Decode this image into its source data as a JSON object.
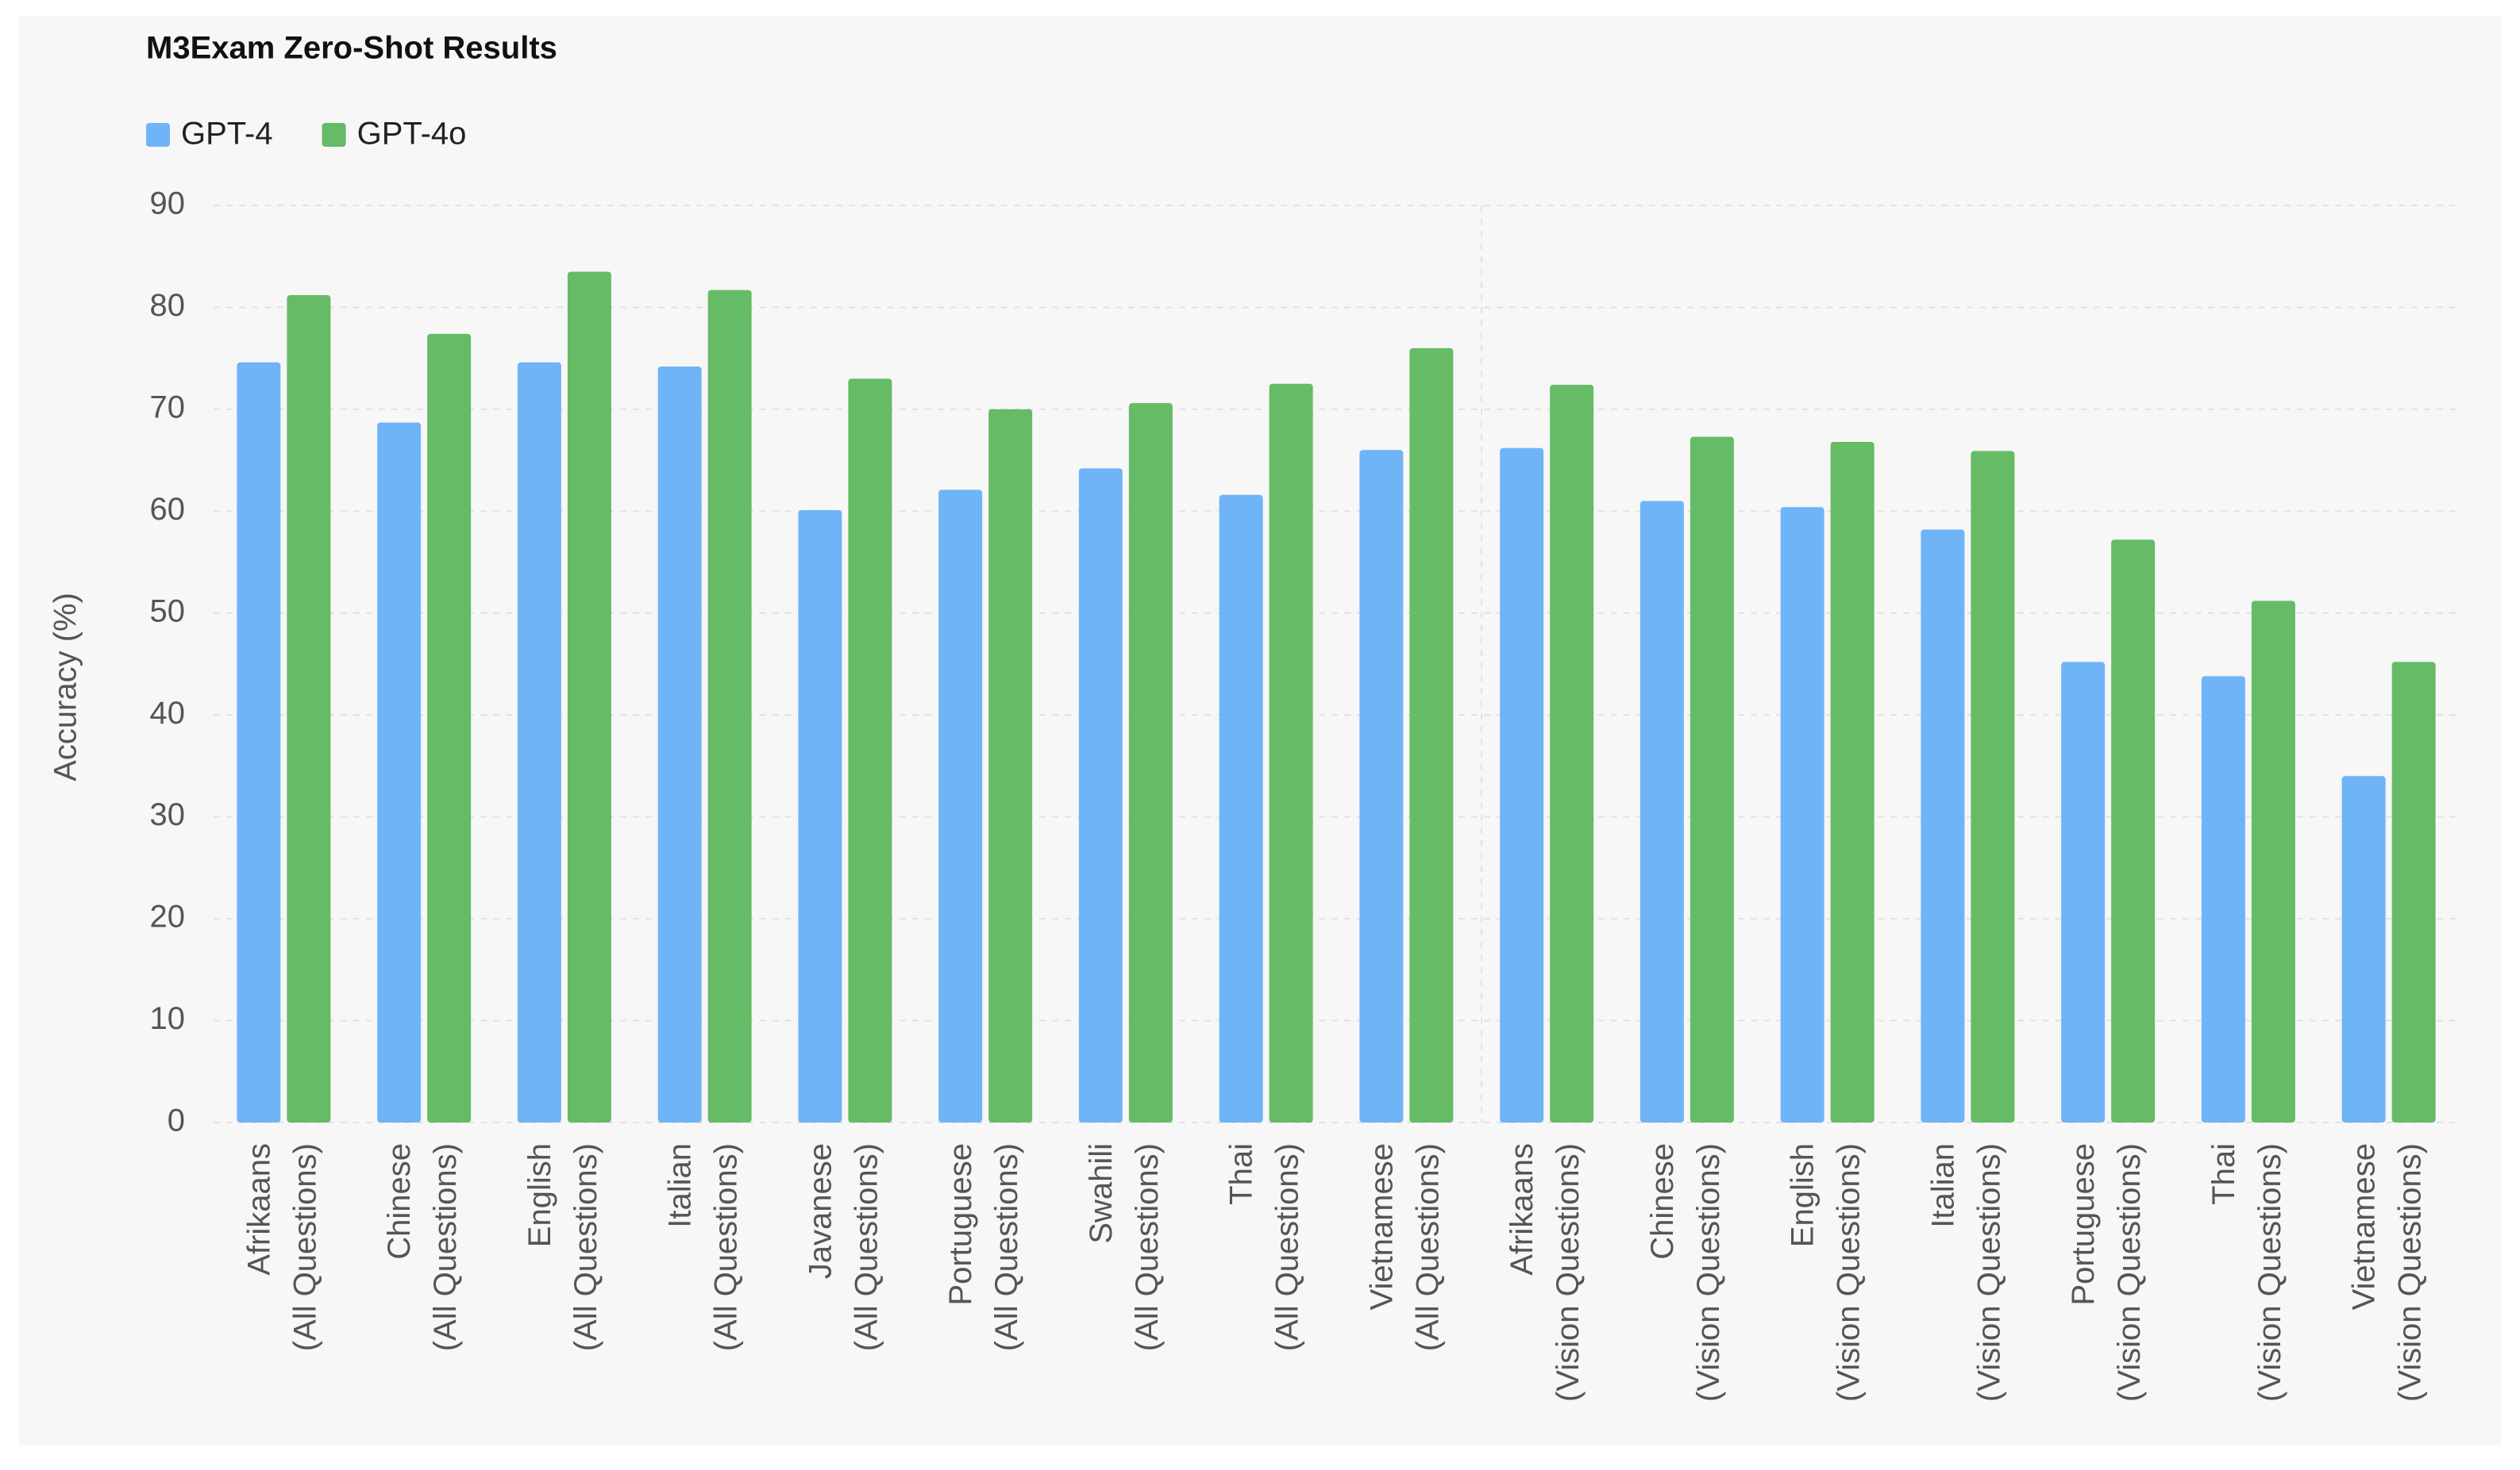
{
  "chart_data": {
    "type": "bar",
    "title": "M3Exam Zero-Shot Results",
    "y_label": "Accuracy (%)",
    "categories": [
      "Afrikaans\n(All Questions)",
      "Chinese\n(All Questions)",
      "English\n(All Questions)",
      "Italian\n(All Questions)",
      "Javanese\n(All Questions)",
      "Portuguese\n(All Questions)",
      "Swahili\n(All Questions)",
      "Thai\n(All Questions)",
      "Vietnamese\n(All Questions)",
      "Afrikaans\n(Vision Questions)",
      "Chinese\n(Vision Questions)",
      "English\n(Vision Questions)",
      "Italian\n(Vision Questions)",
      "Portuguese\n(Vision Questions)",
      "Thai\n(Vision Questions)",
      "Vietnamese\n(Vision Questions)"
    ],
    "series": [
      {
        "name": "GPT-4",
        "color": "#6fb4f7",
        "values": [
          74.6,
          68.7,
          74.6,
          74.2,
          60.1,
          62.1,
          64.2,
          61.6,
          66.0,
          66.2,
          61.0,
          60.4,
          58.2,
          45.2,
          43.8,
          34.0
        ]
      },
      {
        "name": "GPT-4o",
        "color": "#66bb66",
        "values": [
          81.2,
          77.4,
          83.5,
          81.7,
          73.0,
          70.0,
          70.6,
          72.5,
          76.0,
          72.4,
          67.3,
          66.8,
          65.9,
          57.2,
          51.2,
          45.2
        ]
      }
    ],
    "ylim": [
      0,
      90
    ],
    "yticks": [
      0,
      10,
      20,
      30,
      40,
      50,
      60,
      70,
      80,
      90
    ],
    "grid": true,
    "legend": "top-left"
  }
}
